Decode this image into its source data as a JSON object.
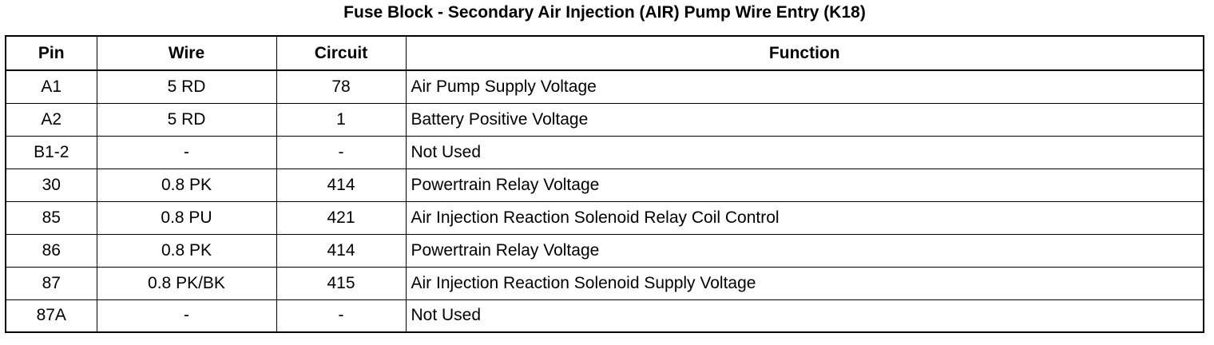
{
  "title": "Fuse Block - Secondary Air Injection (AIR) Pump Wire Entry (K18)",
  "table": {
    "header": [
      "Pin",
      "Wire",
      "Circuit",
      "Function"
    ],
    "rows": [
      [
        "A1",
        "5 RD",
        "78",
        "Air Pump Supply Voltage"
      ],
      [
        "A2",
        "5 RD",
        "1",
        "Battery Positive Voltage"
      ],
      [
        "B1-2",
        "-",
        "-",
        "Not Used"
      ],
      [
        "30",
        "0.8 PK",
        "414",
        "Powertrain Relay Voltage"
      ],
      [
        "85",
        "0.8 PU",
        "421",
        "Air Injection Reaction Solenoid Relay Coil Control"
      ],
      [
        "86",
        "0.8 PK",
        "414",
        "Powertrain Relay Voltage"
      ],
      [
        "87",
        "0.8 PK/BK",
        "415",
        "Air Injection Reaction Solenoid Supply Voltage"
      ],
      [
        "87A",
        "-",
        "-",
        "Not Used"
      ]
    ]
  }
}
